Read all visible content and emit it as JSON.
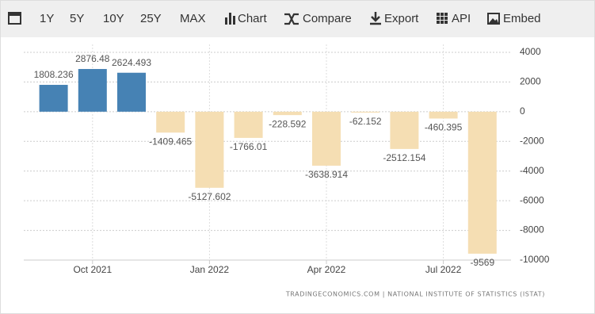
{
  "toolbar": {
    "buttons": [
      "1Y",
      "5Y",
      "10Y",
      "25Y",
      "MAX",
      "Chart",
      "Compare",
      "Export",
      "API",
      "Embed"
    ]
  },
  "chart_data": {
    "type": "bar",
    "categories": [
      null,
      "Oct 2021",
      null,
      null,
      "Jan 2022",
      null,
      null,
      "Apr 2022",
      null,
      null,
      "Jul 2022",
      null
    ],
    "values": [
      1808.236,
      2876.48,
      2624.493,
      -1409.465,
      -5127.602,
      -1766.01,
      -228.592,
      -3638.914,
      -62.152,
      -2512.154,
      -460.395,
      -9569
    ],
    "color_positive": "#4682b4",
    "color_negative": "#f5deb3",
    "ylim": [
      -10000,
      4000
    ],
    "yticks": [
      4000,
      2000,
      0,
      -2000,
      -4000,
      -6000,
      -8000,
      -10000
    ],
    "grid": true,
    "source": "TRADINGECONOMICS.COM  |  NATIONAL INSTITUTE OF STATISTICS (ISTAT)"
  }
}
